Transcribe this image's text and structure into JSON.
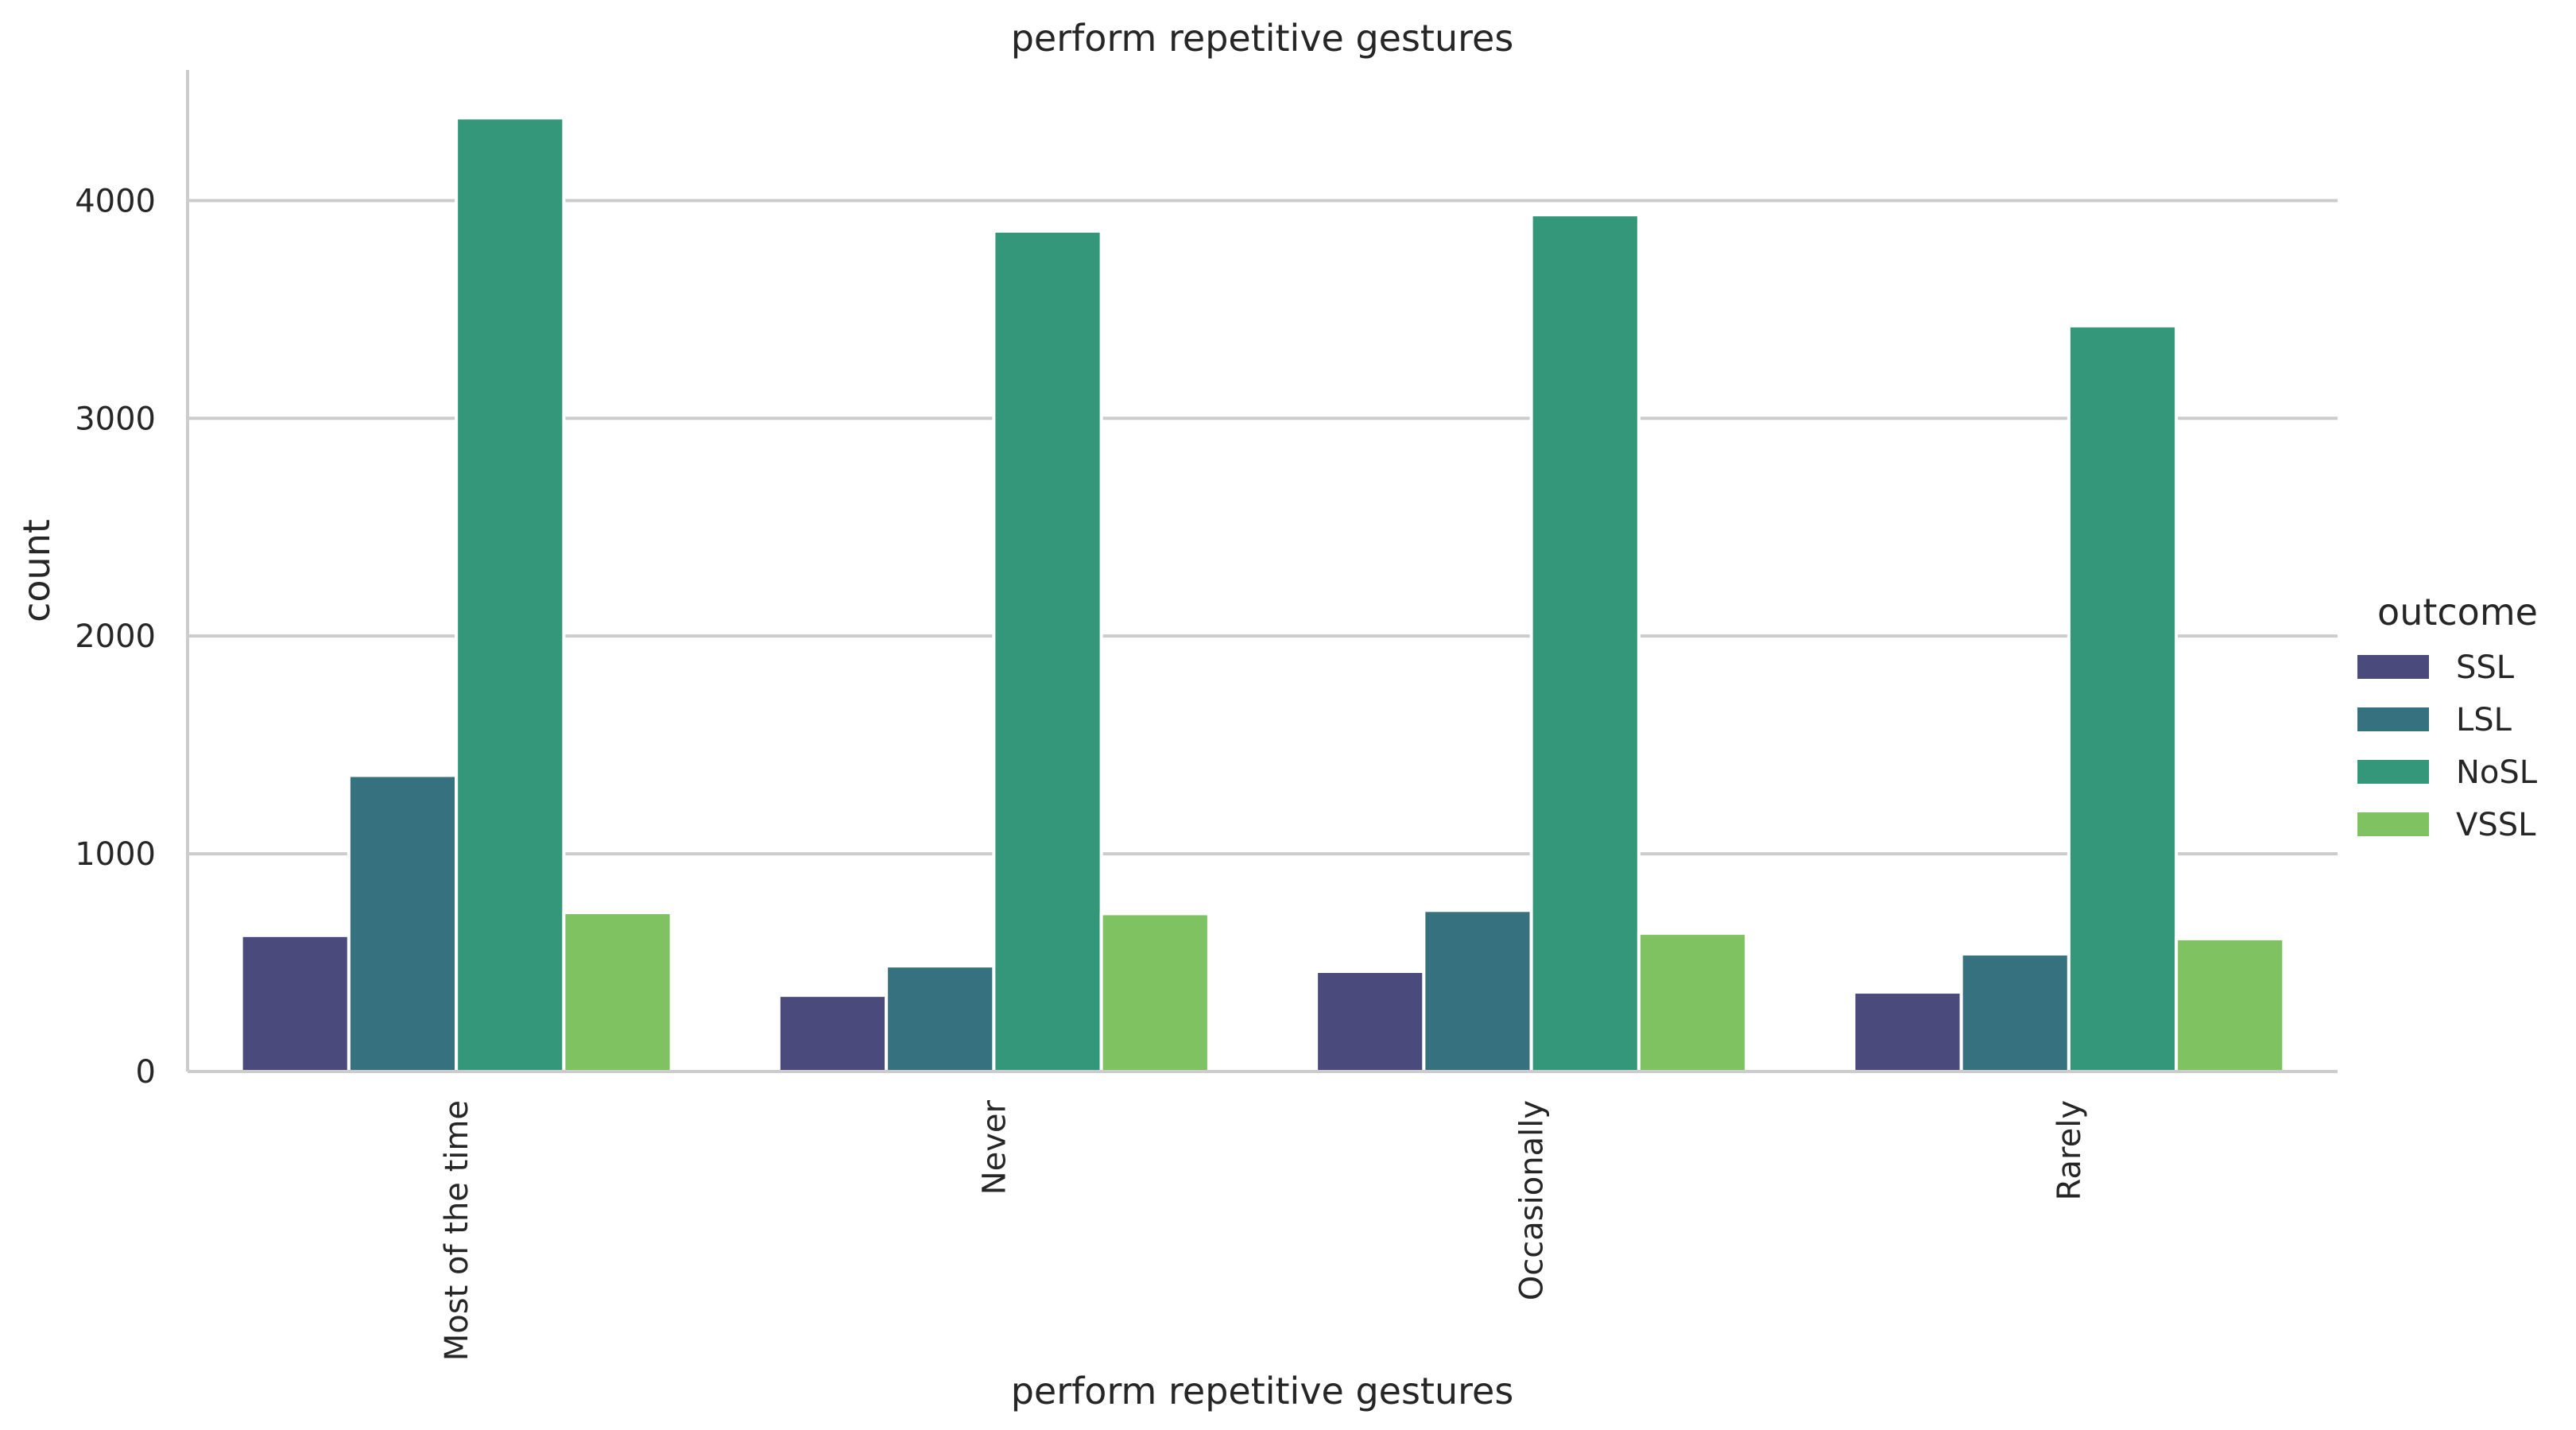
{
  "chart_data": {
    "type": "bar",
    "title": "perform repetitive gestures",
    "xlabel": "perform repetitive gestures",
    "ylabel": "count",
    "categories": [
      "Most of the time",
      "Never",
      "Occasionally",
      "Rarely"
    ],
    "series": [
      {
        "name": "SSL",
        "color": "#4a4a7d",
        "values": [
          625,
          350,
          460,
          365
        ]
      },
      {
        "name": "LSL",
        "color": "#36717f",
        "values": [
          1360,
          485,
          740,
          540
        ]
      },
      {
        "name": "NoSL",
        "color": "#35977a",
        "values": [
          4380,
          3860,
          3935,
          3425
        ]
      },
      {
        "name": "VSSL",
        "color": "#7fc261",
        "values": [
          730,
          725,
          635,
          610
        ]
      }
    ],
    "ylim": [
      0,
      4600
    ],
    "yticks": [
      0,
      1000,
      2000,
      3000,
      4000
    ],
    "ytick_labels": [
      "0",
      "1000",
      "2000",
      "3000",
      "4000"
    ],
    "grid": true,
    "legend": {
      "title": "outcome",
      "placement": "right"
    }
  }
}
